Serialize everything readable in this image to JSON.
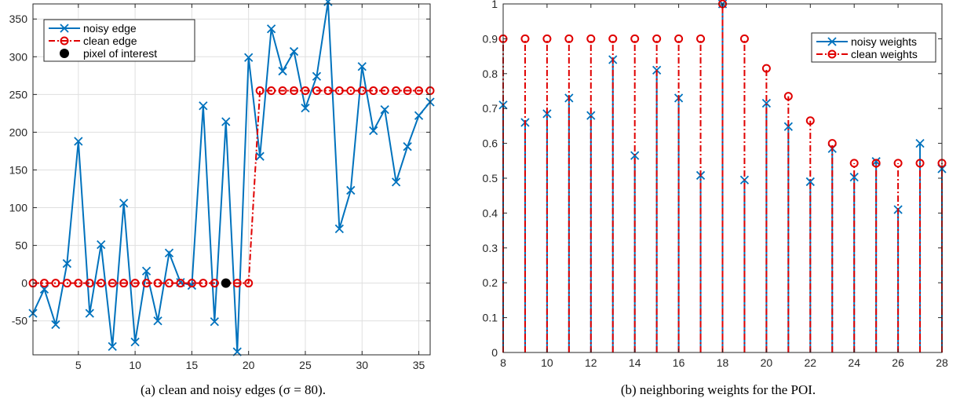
{
  "chart_data": [
    {
      "type": "line",
      "caption": "(a) clean and noisy edges (σ = 80).",
      "xlim": [
        1,
        36
      ],
      "ylim": [
        -95,
        370
      ],
      "xticks": [
        5,
        10,
        15,
        20,
        25,
        30,
        35
      ],
      "yticks": [
        -50,
        0,
        50,
        100,
        150,
        200,
        250,
        300,
        350
      ],
      "grid": true,
      "legend_position": "top-left",
      "x": [
        1,
        2,
        3,
        4,
        5,
        6,
        7,
        8,
        9,
        10,
        11,
        12,
        13,
        14,
        15,
        16,
        17,
        18,
        19,
        20,
        21,
        22,
        23,
        24,
        25,
        26,
        27,
        28,
        29,
        30,
        31,
        32,
        33,
        34,
        35,
        36
      ],
      "series": [
        {
          "name": "noisy edge",
          "color": "#0072bd",
          "marker": "x",
          "line": "solid",
          "values": [
            -40,
            -8,
            -55,
            26,
            188,
            -40,
            51,
            -84,
            106,
            -78,
            16,
            -50,
            40,
            1,
            -3,
            235,
            -51,
            214,
            -91,
            299,
            168,
            337,
            281,
            307,
            232,
            274,
            373,
            72,
            123,
            287,
            202,
            230,
            134,
            181,
            222,
            240
          ]
        },
        {
          "name": "clean edge",
          "color": "#e00000",
          "marker": "o",
          "line": "dashdot",
          "values": [
            0,
            0,
            0,
            0,
            0,
            0,
            0,
            0,
            0,
            0,
            0,
            0,
            0,
            0,
            0,
            0,
            0,
            0,
            0,
            0,
            255,
            255,
            255,
            255,
            255,
            255,
            255,
            255,
            255,
            255,
            255,
            255,
            255,
            255,
            255,
            255
          ]
        },
        {
          "name": "pixel of interest",
          "color": "#000000",
          "marker": "filled-circle",
          "points": [
            [
              18,
              0
            ]
          ]
        }
      ]
    },
    {
      "type": "stem",
      "caption": "(b) neighboring weights for the POI.",
      "xlim": [
        8,
        28
      ],
      "ylim": [
        0,
        1
      ],
      "xticks": [
        8,
        10,
        12,
        14,
        16,
        18,
        20,
        22,
        24,
        26,
        28
      ],
      "yticks": [
        0,
        0.1,
        0.2,
        0.3,
        0.4,
        0.5,
        0.6,
        0.7,
        0.8,
        0.9,
        1
      ],
      "ytick_labels": [
        "0",
        "0.1",
        "0.2",
        "0.3",
        "0.4",
        "0.5",
        "0.6",
        "0.7",
        "0.8",
        "0.9",
        "1"
      ],
      "grid": false,
      "legend_position": "top-right",
      "x": [
        8,
        9,
        10,
        11,
        12,
        13,
        14,
        15,
        16,
        17,
        18,
        19,
        20,
        21,
        22,
        23,
        24,
        25,
        26,
        27,
        28
      ],
      "series": [
        {
          "name": "noisy weights",
          "color": "#0072bd",
          "marker": "x",
          "line": "solid",
          "values": [
            0.71,
            0.66,
            0.685,
            0.73,
            0.68,
            0.84,
            0.565,
            0.81,
            0.73,
            0.508,
            1.0,
            0.495,
            0.715,
            0.648,
            0.49,
            0.585,
            0.503,
            0.548,
            0.41,
            0.6,
            0.527
          ]
        },
        {
          "name": "clean weights",
          "color": "#e00000",
          "marker": "o",
          "line": "dashdot",
          "values": [
            0.9,
            0.9,
            0.9,
            0.9,
            0.9,
            0.9,
            0.9,
            0.9,
            0.9,
            0.9,
            1.0,
            0.9,
            0.815,
            0.735,
            0.665,
            0.6,
            0.543,
            0.543,
            0.543,
            0.543,
            0.543
          ]
        }
      ]
    }
  ]
}
